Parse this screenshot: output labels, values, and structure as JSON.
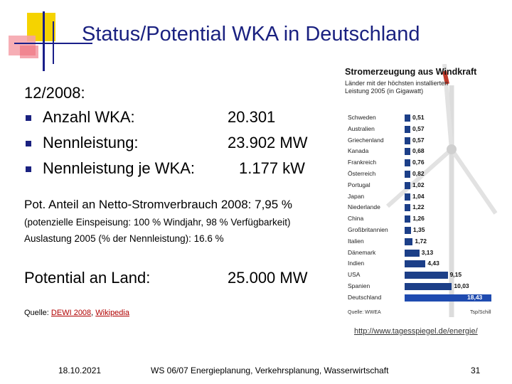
{
  "title": "Status/Potential WKA in Deutschland",
  "heading": "12/2008:",
  "stats": [
    {
      "label": "Anzahl WKA:",
      "value": "20.301"
    },
    {
      "label": "Nennleistung:",
      "value": "23.902 MW"
    },
    {
      "label": "Nennleistung je WKA:",
      "value": "1.177 kW"
    }
  ],
  "pot_anteil": "Pot. Anteil an Netto-Stromverbrauch 2008: 7,95 %",
  "pot_note": "(potenzielle Einspeisung: 100 % Windjahr, 98 % Verfügbarkeit)",
  "auslastung": "Auslastung 2005 (% der Nennleistung): 16.6 %",
  "potential_label": "Potential an Land:",
  "potential_value": "25.000 MW",
  "source": {
    "prefix": "Quelle: ",
    "link1": "DEWI 2008",
    "sep": ", ",
    "link2": "Wikipedia"
  },
  "url": "http://www.tagesspiegel.de/energie/",
  "footer": {
    "date": "18.10.2021",
    "course": "WS 06/07 Energieplanung, Verkehrsplanung, Wasserwirtschaft",
    "page": "31"
  },
  "chart_data": {
    "type": "bar",
    "title": "Stromerzeugung aus Windkraft",
    "subtitle": "Länder mit der höchsten installierten Leistung 2005 (in Gigawatt)",
    "categories": [
      "Schweden",
      "Australien",
      "Griechenland",
      "Kanada",
      "Frankreich",
      "Österreich",
      "Portugal",
      "Japan",
      "Niederlande",
      "China",
      "Großbritannien",
      "Italien",
      "Dänemark",
      "Indien",
      "USA",
      "Spanien",
      "Deutschland"
    ],
    "values": [
      0.51,
      0.57,
      0.57,
      0.68,
      0.76,
      0.82,
      1.02,
      1.04,
      1.22,
      1.26,
      1.35,
      1.72,
      3.13,
      4.43,
      9.15,
      10.03,
      18.43
    ],
    "labels": [
      "0,51",
      "0,57",
      "0,57",
      "0,68",
      "0,76",
      "0,82",
      "1,02",
      "1,04",
      "1,22",
      "1,26",
      "1,35",
      "1,72",
      "3,13",
      "4,43",
      "9,15",
      "10,03",
      "18,43"
    ],
    "source_left": "Quelle: WWEA",
    "source_right": "Tsp/Schill",
    "bar_color": "#1c3f88"
  }
}
